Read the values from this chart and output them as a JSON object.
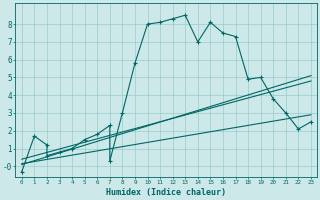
{
  "xlabel": "Humidex (Indice chaleur)",
  "bg_color": "#cce8e8",
  "grid_color": "#99cccc",
  "line_color": "#006666",
  "xlim": [
    -0.5,
    23.5
  ],
  "ylim": [
    -0.6,
    9.2
  ],
  "xtick_labels": [
    "0",
    "1",
    "2",
    "3",
    "4",
    "5",
    "6",
    "7",
    "8",
    "9",
    "10",
    "11",
    "12",
    "13",
    "14",
    "15",
    "16",
    "17",
    "18",
    "19",
    "20",
    "21",
    "22",
    "23"
  ],
  "ytick_labels": [
    "-0",
    "1",
    "2",
    "3",
    "4",
    "5",
    "6",
    "7",
    "8"
  ],
  "ytick_vals": [
    0,
    1,
    2,
    3,
    4,
    5,
    6,
    7,
    8
  ],
  "series1_x": [
    0,
    1,
    2,
    2,
    3,
    4,
    5,
    6,
    7,
    7,
    8,
    9,
    10,
    11,
    12,
    13,
    14,
    15,
    16,
    17,
    18,
    19,
    20,
    21,
    22,
    23
  ],
  "series1_y": [
    -0.3,
    1.7,
    1.2,
    0.6,
    0.8,
    1.0,
    1.5,
    1.8,
    2.3,
    0.3,
    3.0,
    5.8,
    8.0,
    8.1,
    8.3,
    8.5,
    7.0,
    8.1,
    7.5,
    7.3,
    4.9,
    5.0,
    3.8,
    3.0,
    2.1,
    2.5
  ],
  "series2_x": [
    0,
    23
  ],
  "series2_y": [
    0.4,
    4.8
  ],
  "series3_x": [
    0,
    23
  ],
  "series3_y": [
    0.15,
    2.9
  ],
  "series4_x": [
    0,
    23
  ],
  "series4_y": [
    0.1,
    5.1
  ]
}
